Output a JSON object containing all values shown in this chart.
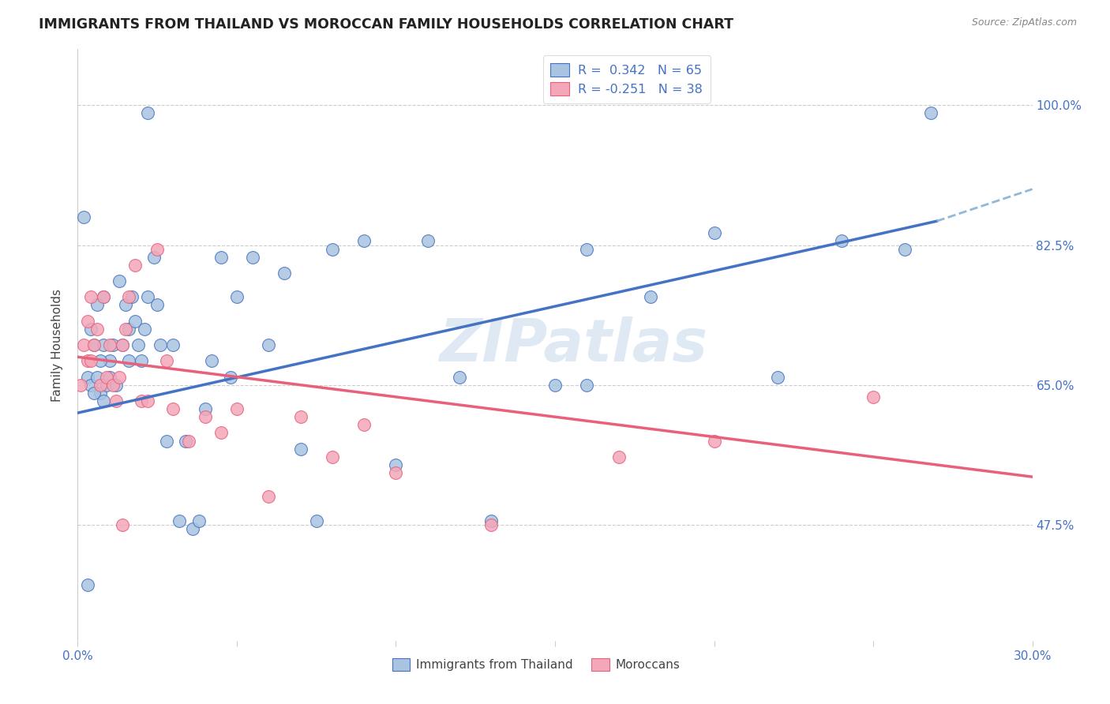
{
  "title": "IMMIGRANTS FROM THAILAND VS MOROCCAN FAMILY HOUSEHOLDS CORRELATION CHART",
  "source": "Source: ZipAtlas.com",
  "ylabel": "Family Households",
  "y_ticks": [
    "47.5%",
    "65.0%",
    "82.5%",
    "100.0%"
  ],
  "y_tick_vals": [
    0.475,
    0.65,
    0.825,
    1.0
  ],
  "x_ticks": [
    0.0,
    0.05,
    0.1,
    0.15,
    0.2,
    0.25,
    0.3
  ],
  "x_tick_labels": [
    "0.0%",
    "",
    "",
    "",
    "",
    "",
    "30.0%"
  ],
  "x_min": 0.0,
  "x_max": 0.3,
  "y_min": 0.33,
  "y_max": 1.07,
  "legend_label1": "R =  0.342   N = 65",
  "legend_label2": "R = -0.251   N = 38",
  "legend_label3": "Immigrants from Thailand",
  "legend_label4": "Moroccans",
  "watermark": "ZIPatlas",
  "color_blue": "#a8c4e0",
  "color_pink": "#f4a7b9",
  "line_blue": "#4472c4",
  "line_pink": "#e8607a",
  "line_dashed_blue": "#90b8d8",
  "blue_line_x0": 0.0,
  "blue_line_y0": 0.615,
  "blue_line_x1": 0.27,
  "blue_line_y1": 0.855,
  "blue_line_x2": 0.3,
  "blue_line_y2": 0.895,
  "pink_line_x0": 0.0,
  "pink_line_y0": 0.685,
  "pink_line_x1": 0.3,
  "pink_line_y1": 0.535,
  "blue_pts_x": [
    0.022,
    0.268,
    0.002,
    0.003,
    0.004,
    0.004,
    0.005,
    0.006,
    0.007,
    0.008,
    0.008,
    0.009,
    0.01,
    0.01,
    0.011,
    0.012,
    0.013,
    0.014,
    0.015,
    0.016,
    0.016,
    0.017,
    0.018,
    0.019,
    0.02,
    0.021,
    0.022,
    0.024,
    0.025,
    0.026,
    0.028,
    0.03,
    0.032,
    0.034,
    0.036,
    0.038,
    0.04,
    0.042,
    0.045,
    0.048,
    0.05,
    0.055,
    0.06,
    0.065,
    0.07,
    0.075,
    0.08,
    0.09,
    0.1,
    0.11,
    0.12,
    0.13,
    0.15,
    0.16,
    0.18,
    0.2,
    0.22,
    0.24,
    0.26,
    0.005,
    0.006,
    0.007,
    0.008,
    0.003,
    0.16
  ],
  "blue_pts_y": [
    0.99,
    0.99,
    0.86,
    0.66,
    0.72,
    0.65,
    0.7,
    0.66,
    0.64,
    0.76,
    0.7,
    0.65,
    0.68,
    0.66,
    0.7,
    0.65,
    0.78,
    0.7,
    0.75,
    0.72,
    0.68,
    0.76,
    0.73,
    0.7,
    0.68,
    0.72,
    0.76,
    0.81,
    0.75,
    0.7,
    0.58,
    0.7,
    0.48,
    0.58,
    0.47,
    0.48,
    0.62,
    0.68,
    0.81,
    0.66,
    0.76,
    0.81,
    0.7,
    0.79,
    0.57,
    0.48,
    0.82,
    0.83,
    0.55,
    0.83,
    0.66,
    0.48,
    0.65,
    0.82,
    0.76,
    0.84,
    0.66,
    0.83,
    0.82,
    0.64,
    0.75,
    0.68,
    0.63,
    0.4,
    0.65
  ],
  "pink_pts_x": [
    0.001,
    0.002,
    0.003,
    0.003,
    0.004,
    0.004,
    0.005,
    0.006,
    0.007,
    0.008,
    0.009,
    0.01,
    0.011,
    0.012,
    0.013,
    0.014,
    0.015,
    0.016,
    0.018,
    0.02,
    0.022,
    0.025,
    0.028,
    0.03,
    0.035,
    0.04,
    0.045,
    0.05,
    0.06,
    0.07,
    0.08,
    0.09,
    0.1,
    0.13,
    0.014,
    0.17,
    0.2,
    0.25
  ],
  "pink_pts_y": [
    0.65,
    0.7,
    0.68,
    0.73,
    0.68,
    0.76,
    0.7,
    0.72,
    0.65,
    0.76,
    0.66,
    0.7,
    0.65,
    0.63,
    0.66,
    0.7,
    0.72,
    0.76,
    0.8,
    0.63,
    0.63,
    0.82,
    0.68,
    0.62,
    0.58,
    0.61,
    0.59,
    0.62,
    0.51,
    0.61,
    0.56,
    0.6,
    0.54,
    0.475,
    0.475,
    0.56,
    0.58,
    0.635
  ]
}
